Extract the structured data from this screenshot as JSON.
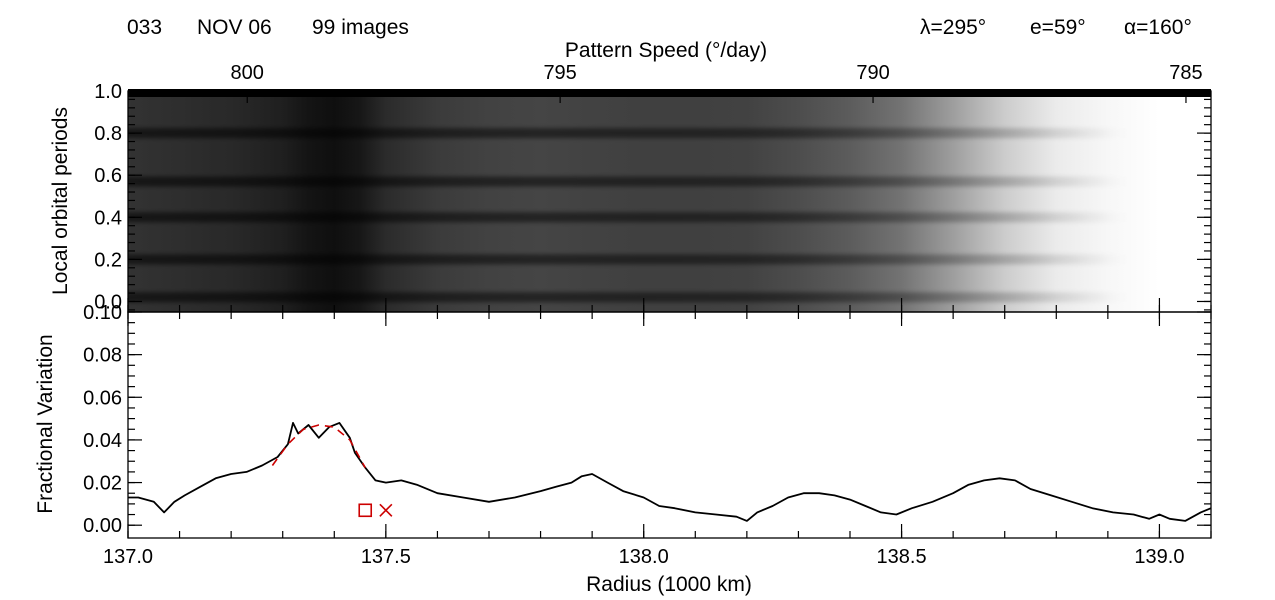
{
  "header": {
    "id": "033",
    "date": "NOV 06",
    "images": "99 images",
    "lambda": "λ=295°",
    "emission": "e=59°",
    "phase": "α=160°"
  },
  "chart_data": [
    {
      "type": "heatmap",
      "colormap": "grayscale",
      "x2label": "Pattern Speed (°/day)",
      "x2_ticks": [
        "800",
        "795",
        "790",
        "785"
      ],
      "x2_tick_values": [
        800,
        795,
        790,
        785
      ],
      "ylabel": "Local orbital periods",
      "ylim": [
        -0.05,
        1.0
      ],
      "y_ticks": [
        "0.0",
        "0.2",
        "0.4",
        "0.6",
        "0.8",
        "1.0"
      ],
      "y_tick_values": [
        0.0,
        0.2,
        0.4,
        0.6,
        0.8,
        1.0
      ],
      "xlim": [
        137.0,
        139.1
      ],
      "column_brightness": {
        "x": [
          137.0,
          137.05,
          137.1,
          137.15,
          137.2,
          137.25,
          137.3,
          137.35,
          137.4,
          137.45,
          137.5,
          137.6,
          137.7,
          137.8,
          137.9,
          138.0,
          138.1,
          138.2,
          138.3,
          138.4,
          138.5,
          138.6,
          138.7,
          138.8,
          138.9,
          139.0,
          139.1
        ],
        "level": [
          0.2,
          0.19,
          0.18,
          0.17,
          0.16,
          0.14,
          0.12,
          0.08,
          0.06,
          0.09,
          0.17,
          0.23,
          0.26,
          0.27,
          0.26,
          0.25,
          0.25,
          0.26,
          0.3,
          0.36,
          0.45,
          0.62,
          0.8,
          0.92,
          0.97,
          1.0,
          1.0
        ]
      },
      "dark_bands_y": [
        0.02,
        0.2,
        0.4,
        0.57,
        0.8
      ]
    },
    {
      "type": "line",
      "xlabel": "Radius (1000 km)",
      "ylabel": "Fractional Variation",
      "xlim": [
        137.0,
        139.1
      ],
      "ylim": [
        -0.006,
        0.1
      ],
      "x_ticks": [
        "137.0",
        "137.5",
        "138.0",
        "138.5",
        "139.0"
      ],
      "x_tick_values": [
        137.0,
        137.5,
        138.0,
        138.5,
        139.0
      ],
      "y_ticks": [
        "0.00",
        "0.02",
        "0.04",
        "0.06",
        "0.08",
        "0.10"
      ],
      "y_tick_values": [
        0.0,
        0.02,
        0.04,
        0.06,
        0.08,
        0.1
      ],
      "series": [
        {
          "style": "solid",
          "color": "#000000",
          "x": [
            137.0,
            137.02,
            137.05,
            137.07,
            137.09,
            137.11,
            137.14,
            137.17,
            137.2,
            137.23,
            137.26,
            137.29,
            137.31,
            137.32,
            137.33,
            137.35,
            137.37,
            137.39,
            137.41,
            137.43,
            137.44,
            137.46,
            137.48,
            137.5,
            137.53,
            137.56,
            137.6,
            137.65,
            137.7,
            137.75,
            137.8,
            137.83,
            137.86,
            137.88,
            137.9,
            137.93,
            137.96,
            138.0,
            138.03,
            138.06,
            138.1,
            138.14,
            138.18,
            138.2,
            138.22,
            138.25,
            138.28,
            138.31,
            138.34,
            138.37,
            138.4,
            138.43,
            138.46,
            138.49,
            138.52,
            138.56,
            138.6,
            138.63,
            138.66,
            138.69,
            138.72,
            138.75,
            138.79,
            138.83,
            138.87,
            138.91,
            138.95,
            138.98,
            139.0,
            139.02,
            139.05,
            139.08,
            139.1
          ],
          "y": [
            0.013,
            0.013,
            0.011,
            0.006,
            0.011,
            0.014,
            0.018,
            0.022,
            0.024,
            0.025,
            0.028,
            0.032,
            0.038,
            0.048,
            0.043,
            0.047,
            0.041,
            0.046,
            0.048,
            0.041,
            0.034,
            0.027,
            0.021,
            0.02,
            0.021,
            0.019,
            0.015,
            0.013,
            0.011,
            0.013,
            0.016,
            0.018,
            0.02,
            0.023,
            0.024,
            0.02,
            0.016,
            0.013,
            0.009,
            0.008,
            0.006,
            0.005,
            0.004,
            0.002,
            0.006,
            0.009,
            0.013,
            0.015,
            0.015,
            0.014,
            0.012,
            0.009,
            0.006,
            0.005,
            0.008,
            0.011,
            0.015,
            0.019,
            0.021,
            0.022,
            0.021,
            0.017,
            0.014,
            0.011,
            0.008,
            0.006,
            0.005,
            0.003,
            0.005,
            0.003,
            0.002,
            0.006,
            0.008
          ]
        },
        {
          "style": "dashed",
          "color": "#cc0000",
          "x": [
            137.28,
            137.31,
            137.34,
            137.37,
            137.4,
            137.43,
            137.46
          ],
          "y": [
            0.028,
            0.038,
            0.045,
            0.047,
            0.046,
            0.04,
            0.027
          ]
        }
      ],
      "markers": [
        {
          "symbol": "square",
          "color": "#cc0000",
          "x": 137.46,
          "y": 0.007
        },
        {
          "symbol": "x",
          "color": "#cc0000",
          "x": 137.5,
          "y": 0.007
        }
      ]
    }
  ]
}
